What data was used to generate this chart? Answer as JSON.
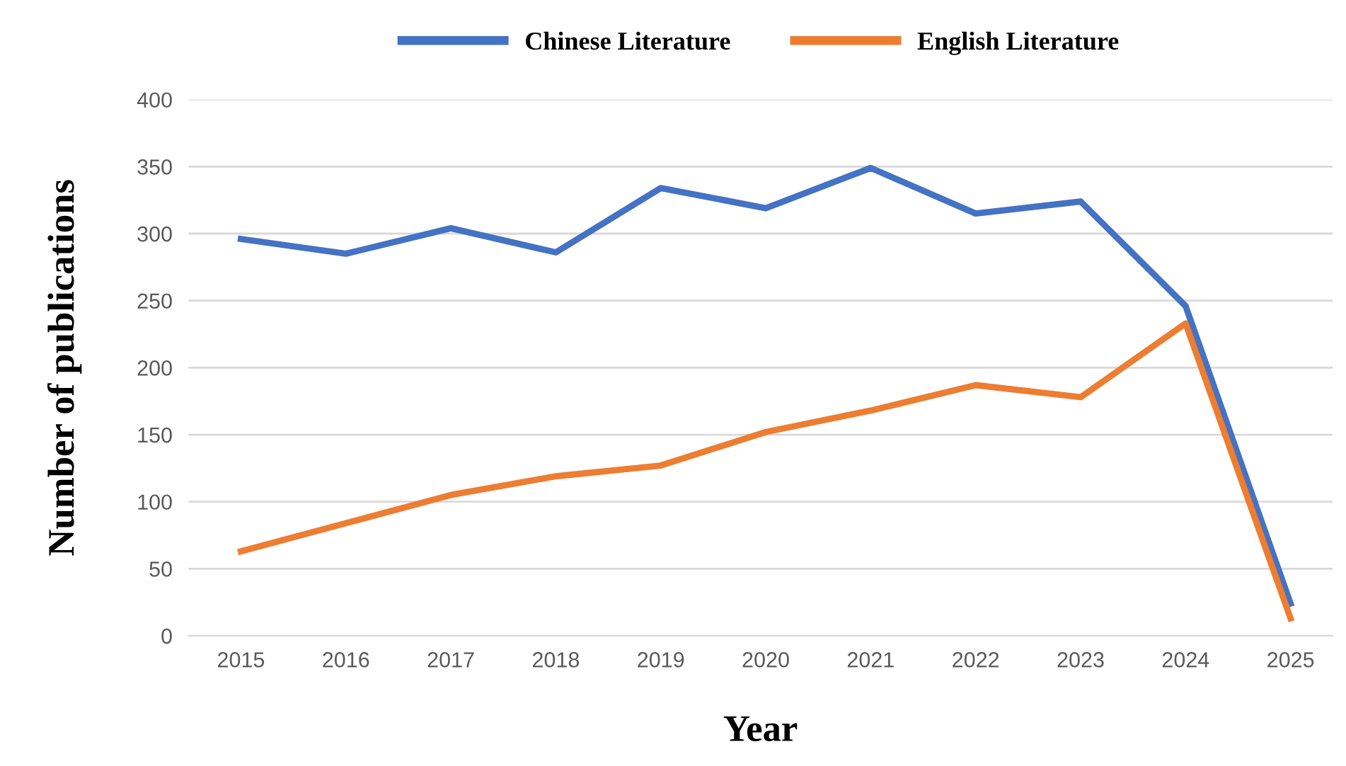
{
  "chart_data": {
    "type": "line",
    "xlabel": "Year",
    "ylabel": "Number of publications",
    "categories": [
      "2015",
      "2016",
      "2017",
      "2018",
      "2019",
      "2020",
      "2021",
      "2022",
      "2023",
      "2024",
      "2025"
    ],
    "series": [
      {
        "name": "Chinese Literature",
        "color": "#4472c4",
        "values": [
          296,
          285,
          304,
          286,
          334,
          319,
          349,
          315,
          324,
          246,
          24
        ]
      },
      {
        "name": "English Literature",
        "color": "#ed7d31",
        "values": [
          63,
          84,
          105,
          119,
          127,
          152,
          168,
          187,
          178,
          233,
          13
        ]
      }
    ],
    "ylim": [
      0,
      400
    ],
    "yticks": [
      0,
      50,
      100,
      150,
      200,
      250,
      300,
      350,
      400
    ],
    "grid": "y",
    "legend": "top",
    "marker": "none",
    "line_style": "solid"
  }
}
